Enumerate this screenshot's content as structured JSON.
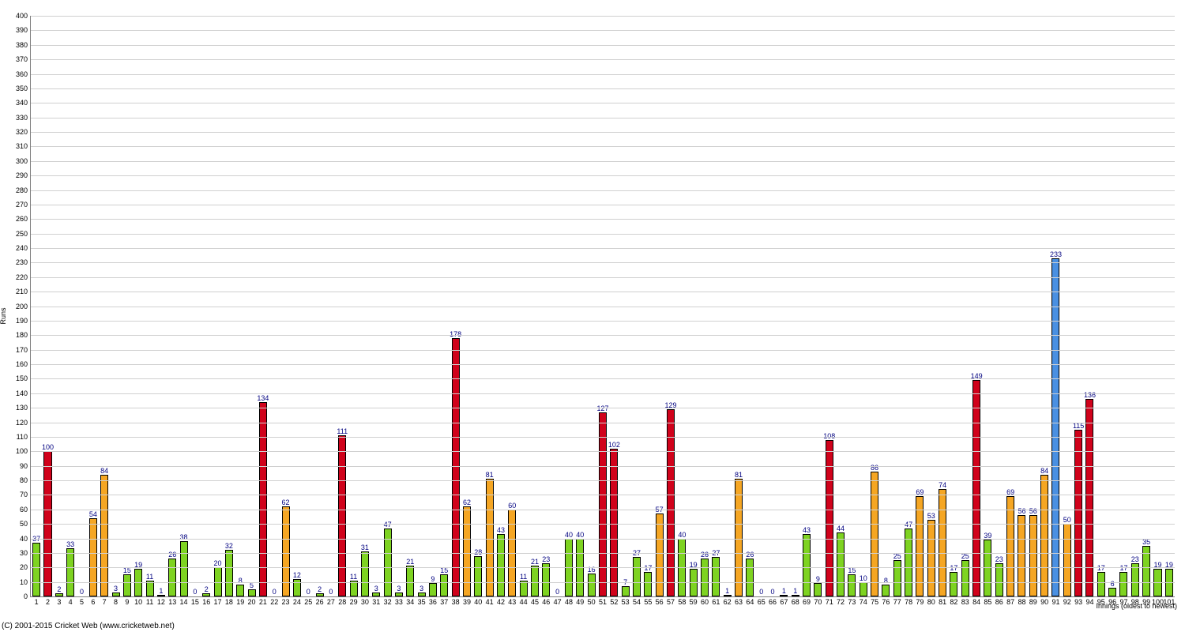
{
  "chart": {
    "type": "bar",
    "ylabel": "Runs",
    "xlabel": "Innings (oldest to newest)",
    "background_color": "#ffffff",
    "grid_color": "#d0d0d0",
    "axis_color": "#808080",
    "value_label_color": "#000080",
    "tick_font_size": 9,
    "label_font_size": 9,
    "ylim": [
      0,
      400
    ],
    "ytick_step": 10,
    "bar_border": "#000000",
    "colors": {
      "green": "#7ed321",
      "orange": "#f5a623",
      "red": "#d0021b",
      "blue": "#4a90e2"
    },
    "values": [
      37,
      100,
      2,
      33,
      0,
      54,
      84,
      3,
      15,
      19,
      11,
      1,
      26,
      38,
      0,
      2,
      20,
      32,
      8,
      5,
      134,
      0,
      62,
      12,
      0,
      2,
      0,
      111,
      11,
      31,
      3,
      47,
      3,
      21,
      3,
      9,
      15,
      178,
      62,
      28,
      81,
      43,
      60,
      11,
      21,
      23,
      0,
      40,
      40,
      16,
      127,
      102,
      7,
      27,
      17,
      57,
      129,
      40,
      19,
      26,
      27,
      1,
      81,
      26,
      0,
      0,
      1,
      1,
      43,
      9,
      108,
      44,
      15,
      10,
      86,
      8,
      25,
      47,
      69,
      53,
      74,
      17,
      25,
      149,
      39,
      23,
      69,
      56,
      56,
      84,
      233,
      50,
      115,
      136,
      17,
      6,
      17,
      23,
      35,
      19,
      19
    ],
    "series_color": [
      "green",
      "red",
      "green",
      "green",
      "green",
      "orange",
      "orange",
      "green",
      "green",
      "green",
      "green",
      "green",
      "green",
      "green",
      "green",
      "green",
      "green",
      "green",
      "green",
      "green",
      "red",
      "green",
      "orange",
      "green",
      "green",
      "green",
      "green",
      "red",
      "green",
      "green",
      "green",
      "green",
      "green",
      "green",
      "green",
      "green",
      "green",
      "red",
      "orange",
      "green",
      "orange",
      "green",
      "orange",
      "green",
      "green",
      "green",
      "green",
      "green",
      "green",
      "green",
      "red",
      "red",
      "green",
      "green",
      "green",
      "orange",
      "red",
      "green",
      "green",
      "green",
      "green",
      "green",
      "orange",
      "green",
      "green",
      "green",
      "green",
      "green",
      "green",
      "green",
      "red",
      "green",
      "green",
      "green",
      "orange",
      "green",
      "green",
      "green",
      "orange",
      "orange",
      "orange",
      "green",
      "green",
      "red",
      "green",
      "green",
      "orange",
      "orange",
      "orange",
      "orange",
      "blue",
      "orange",
      "red",
      "red",
      "green",
      "green",
      "green",
      "green",
      "green",
      "green",
      "green"
    ]
  },
  "copyright": "(C) 2001-2015 Cricket Web (www.cricketweb.net)"
}
